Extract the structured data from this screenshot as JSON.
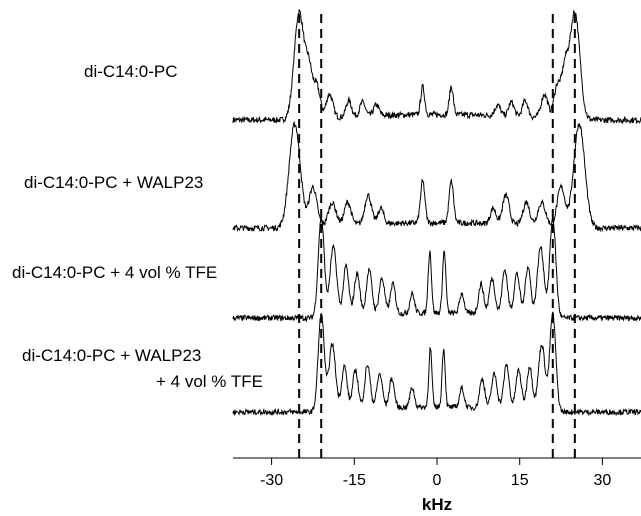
{
  "chart_data": {
    "type": "line",
    "xlabel": "kHz",
    "xlim": [
      -37,
      37
    ],
    "xticks": [
      -30,
      -15,
      0,
      15,
      30
    ],
    "grid": false,
    "series": [
      {
        "name": "di-C14:0-PC",
        "pairs": [
          {
            "pos": 25.0,
            "amp": 1.0,
            "w": 0.9
          },
          {
            "pos": 23.2,
            "amp": 0.42,
            "w": 0.6
          },
          {
            "pos": 21.8,
            "amp": 0.3,
            "w": 0.6
          },
          {
            "pos": 19.5,
            "amp": 0.22,
            "w": 0.6
          },
          {
            "pos": 16.0,
            "amp": 0.15,
            "w": 0.5
          },
          {
            "pos": 13.5,
            "amp": 0.13,
            "w": 0.5
          },
          {
            "pos": 11.0,
            "amp": 0.1,
            "w": 0.5
          },
          {
            "pos": 2.6,
            "amp": 0.26,
            "w": 0.35
          }
        ]
      },
      {
        "name": "di-C14:0-PC + WALP23",
        "pairs": [
          {
            "pos": 25.8,
            "amp": 1.0,
            "w": 1.0
          },
          {
            "pos": 22.5,
            "amp": 0.38,
            "w": 0.7
          },
          {
            "pos": 19.0,
            "amp": 0.22,
            "w": 0.7
          },
          {
            "pos": 16.2,
            "amp": 0.22,
            "w": 0.6
          },
          {
            "pos": 12.5,
            "amp": 0.28,
            "w": 0.6
          },
          {
            "pos": 10.2,
            "amp": 0.15,
            "w": 0.5
          },
          {
            "pos": 2.6,
            "amp": 0.4,
            "w": 0.4
          }
        ]
      },
      {
        "name": "di-C14:0-PC + 4 vol % TFE",
        "pairs": [
          {
            "pos": 21.0,
            "amp": 1.0,
            "w": 0.55
          },
          {
            "pos": 18.8,
            "amp": 0.7,
            "w": 0.6
          },
          {
            "pos": 16.5,
            "amp": 0.5,
            "w": 0.5
          },
          {
            "pos": 14.5,
            "amp": 0.42,
            "w": 0.5
          },
          {
            "pos": 12.3,
            "amp": 0.45,
            "w": 0.5
          },
          {
            "pos": 10.0,
            "amp": 0.36,
            "w": 0.5
          },
          {
            "pos": 8.0,
            "amp": 0.3,
            "w": 0.45
          },
          {
            "pos": 4.5,
            "amp": 0.2,
            "w": 0.4
          },
          {
            "pos": 1.3,
            "amp": 0.62,
            "w": 0.3
          }
        ]
      },
      {
        "name": "di-C14:0-PC + WALP23\n+ 4 vol % TFE",
        "pairs": [
          {
            "pos": 21.0,
            "amp": 1.0,
            "w": 0.55
          },
          {
            "pos": 19.0,
            "amp": 0.68,
            "w": 0.6
          },
          {
            "pos": 16.8,
            "amp": 0.45,
            "w": 0.5
          },
          {
            "pos": 14.8,
            "amp": 0.4,
            "w": 0.5
          },
          {
            "pos": 12.6,
            "amp": 0.45,
            "w": 0.5
          },
          {
            "pos": 10.4,
            "amp": 0.35,
            "w": 0.5
          },
          {
            "pos": 8.2,
            "amp": 0.3,
            "w": 0.45
          },
          {
            "pos": 4.5,
            "amp": 0.2,
            "w": 0.4
          },
          {
            "pos": 1.2,
            "amp": 0.6,
            "w": 0.28
          }
        ]
      }
    ],
    "reference_lines_khz": [
      -25,
      -21,
      21,
      25
    ]
  }
}
